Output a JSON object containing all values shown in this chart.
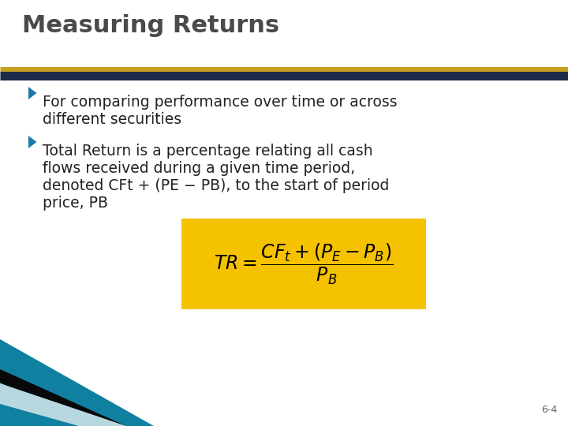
{
  "title": "Measuring Returns",
  "title_color": "#4a4a4a",
  "title_fontsize": 22,
  "separator_gold_color": "#c8a020",
  "separator_navy_color": "#1c2c4a",
  "bullet1_lines": [
    "For comparing performance over time or across",
    "different securities"
  ],
  "bullet2_lines": [
    "Total Return is a percentage relating all cash",
    "flows received during a given time period,",
    "denoted CFt + (PE − PB), to the start of period",
    "price, PB"
  ],
  "bullet_color": "#222222",
  "bullet_fontsize": 13.5,
  "bullet_triangle_color": "#1a7aaa",
  "formula_bg": "#f5c200",
  "formula_color": "#000000",
  "page_number": "6-4",
  "bg_color": "#ffffff",
  "teal_color": "#1080a0",
  "light_teal_color": "#b8d8e0",
  "dark_color": "#080808"
}
